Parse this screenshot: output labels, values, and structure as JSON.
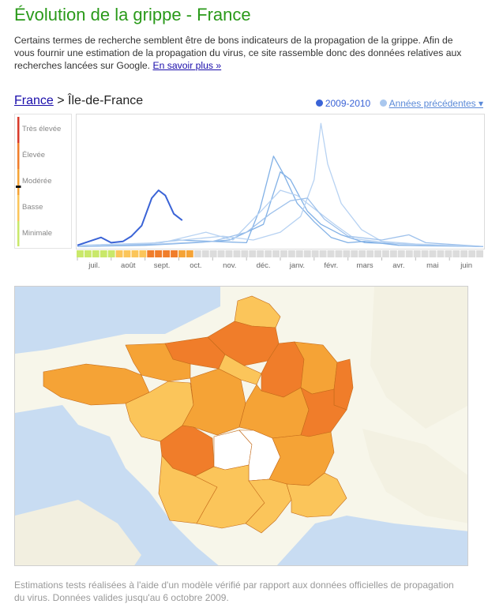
{
  "header": {
    "title": "Évolution de la grippe - France",
    "intro": "Certains termes de recherche semblent être de bons indicateurs de la propagation de la grippe. Afin de vous fournir une estimation de la propagation du virus, ce site rassemble donc des données relatives aux recherches lancées sur Google.",
    "learn_more": "En savoir plus »"
  },
  "breadcrumb": {
    "country": "France",
    "separator": ">",
    "region": "Île-de-France"
  },
  "legend": {
    "current_label": "2009-2010",
    "previous_label": "Années précédentes ▾",
    "current_color": "#3a63d6",
    "previous_color": "#a9c7ee"
  },
  "intensity_scale": {
    "levels": [
      "Très élevée",
      "Élevée",
      "Modérée",
      "Basse",
      "Minimale"
    ],
    "colors": [
      "#d83a2a",
      "#f07d2a",
      "#f5a336",
      "#fbc55a",
      "#c9e86a"
    ],
    "current_level": "Modérée"
  },
  "chart_data": {
    "type": "line",
    "x_categories": [
      "juil.",
      "août",
      "sept.",
      "oct.",
      "nov.",
      "déc.",
      "janv.",
      "févr.",
      "mars",
      "avr.",
      "mai",
      "juin"
    ],
    "x_range": [
      0,
      12
    ],
    "y_range": [
      0,
      100
    ],
    "y_categories": [
      "Minimale",
      "Basse",
      "Modérée",
      "Élevée",
      "Très élevée"
    ],
    "series": [
      {
        "name": "2009-2010",
        "color": "#3a63d6",
        "points": [
          [
            0,
            2
          ],
          [
            0.7,
            8
          ],
          [
            1,
            4
          ],
          [
            1.35,
            5
          ],
          [
            1.6,
            9
          ],
          [
            1.9,
            17
          ],
          [
            2.2,
            38
          ],
          [
            2.4,
            44
          ],
          [
            2.6,
            40
          ],
          [
            2.85,
            26
          ],
          [
            3.1,
            21
          ]
        ]
      },
      {
        "name": "",
        "color": "#82b1e6",
        "points": [
          [
            0,
            1
          ],
          [
            2,
            3
          ],
          [
            3,
            6
          ],
          [
            4,
            5
          ],
          [
            5,
            4
          ],
          [
            5.4,
            30
          ],
          [
            5.8,
            70
          ],
          [
            6.1,
            56
          ],
          [
            6.5,
            34
          ],
          [
            7,
            20
          ],
          [
            7.5,
            8
          ],
          [
            8,
            4
          ],
          [
            8.5,
            5
          ],
          [
            9.5,
            2
          ],
          [
            12,
            1
          ]
        ]
      },
      {
        "name": "",
        "color": "#82b1e6",
        "points": [
          [
            0,
            1
          ],
          [
            2,
            2
          ],
          [
            3.5,
            4
          ],
          [
            4.5,
            6
          ],
          [
            5.5,
            18
          ],
          [
            6,
            58
          ],
          [
            6.3,
            52
          ],
          [
            6.8,
            28
          ],
          [
            7.2,
            18
          ],
          [
            7.8,
            10
          ],
          [
            8.5,
            4
          ],
          [
            12,
            1
          ]
        ]
      },
      {
        "name": "",
        "color": "#b7d2f2",
        "points": [
          [
            0,
            1
          ],
          [
            2,
            3
          ],
          [
            3.5,
            7
          ],
          [
            4.3,
            9
          ],
          [
            5.2,
            6
          ],
          [
            6,
            12
          ],
          [
            6.6,
            24
          ],
          [
            7,
            52
          ],
          [
            7.2,
            95
          ],
          [
            7.4,
            64
          ],
          [
            7.8,
            34
          ],
          [
            8.4,
            14
          ],
          [
            9,
            5
          ],
          [
            10,
            3
          ],
          [
            12,
            1
          ]
        ]
      },
      {
        "name": "",
        "color": "#b7d2f2",
        "points": [
          [
            0,
            2
          ],
          [
            2.5,
            4
          ],
          [
            3.8,
            12
          ],
          [
            4.6,
            6
          ],
          [
            5.5,
            30
          ],
          [
            6,
            44
          ],
          [
            6.5,
            40
          ],
          [
            7,
            30
          ],
          [
            7.6,
            18
          ],
          [
            8.2,
            7
          ],
          [
            9.5,
            3
          ],
          [
            12,
            1
          ]
        ]
      },
      {
        "name": "",
        "color": "#9fc2ec",
        "points": [
          [
            0,
            1
          ],
          [
            2.5,
            3
          ],
          [
            4,
            5
          ],
          [
            5,
            12
          ],
          [
            5.7,
            26
          ],
          [
            6.3,
            36
          ],
          [
            6.8,
            38
          ],
          [
            7.3,
            22
          ],
          [
            8,
            9
          ],
          [
            9,
            6
          ],
          [
            9.8,
            10
          ],
          [
            10.3,
            4
          ],
          [
            12,
            1
          ]
        ]
      }
    ],
    "intensity_strip": [
      "#c9e86a",
      "#c9e86a",
      "#c9e86a",
      "#c9e86a",
      "#c9e86a",
      "#fbc55a",
      "#fbc55a",
      "#fbc55a",
      "#fbc55a",
      "#f07d2a",
      "#f07d2a",
      "#f07d2a",
      "#f07d2a",
      "#f5a336",
      "#f5a336"
    ]
  },
  "map": {
    "regions": [
      {
        "name": "Nord-Pas-de-Calais",
        "color": "#fbc55a"
      },
      {
        "name": "Picardie",
        "color": "#f07d2a"
      },
      {
        "name": "Haute-Normandie",
        "color": "#f07d2a"
      },
      {
        "name": "Basse-Normandie",
        "color": "#f5a336"
      },
      {
        "name": "Bretagne",
        "color": "#f5a336"
      },
      {
        "name": "Pays de la Loire",
        "color": "#fbc55a"
      },
      {
        "name": "Centre",
        "color": "#f5a336"
      },
      {
        "name": "Île-de-France",
        "color": "#fbc55a"
      },
      {
        "name": "Champagne-Ardenne",
        "color": "#f07d2a"
      },
      {
        "name": "Lorraine",
        "color": "#f5a336"
      },
      {
        "name": "Alsace",
        "color": "#f07d2a"
      },
      {
        "name": "Bourgogne",
        "color": "#f5a336"
      },
      {
        "name": "Franche-Comté",
        "color": "#f07d2a"
      },
      {
        "name": "Poitou-Charentes",
        "color": "#f07d2a"
      },
      {
        "name": "Limousin",
        "color": "#ffffff"
      },
      {
        "name": "Auvergne",
        "color": "#ffffff"
      },
      {
        "name": "Rhône-Alpes",
        "color": "#f5a336"
      },
      {
        "name": "Aquitaine",
        "color": "#fbc55a"
      },
      {
        "name": "Midi-Pyrénées",
        "color": "#fbc55a"
      },
      {
        "name": "Languedoc-Roussillon",
        "color": "#fbc55a"
      },
      {
        "name": "Provence-Alpes-Côte d'Azur",
        "color": "#fbc55a"
      }
    ]
  },
  "footer": {
    "note": "Estimations tests réalisées à l'aide d'un modèle vérifié par rapport aux données officielles de propagation du virus. Données valides jusqu'au 6 octobre 2009."
  }
}
